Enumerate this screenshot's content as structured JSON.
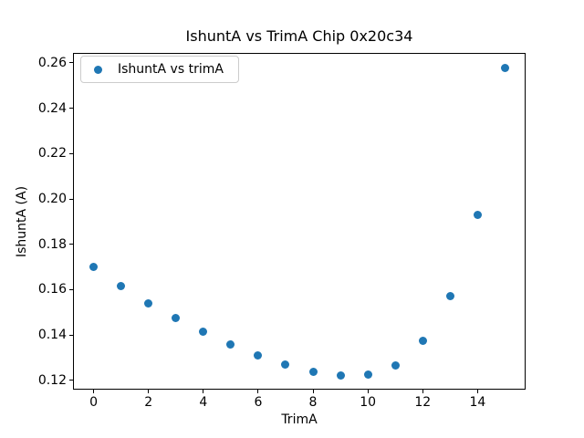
{
  "chart_data": {
    "type": "scatter",
    "title": "IshuntA vs TrimA Chip 0x20c34",
    "xlabel": "TrimA",
    "ylabel": "IshuntA (A)",
    "series": [
      {
        "name": "IshuntA vs trimA",
        "x": [
          0,
          1,
          2,
          3,
          4,
          5,
          6,
          7,
          8,
          9,
          10,
          11,
          12,
          13,
          14,
          15
        ],
        "y": [
          0.1701,
          0.1616,
          0.1539,
          0.1473,
          0.1414,
          0.1357,
          0.1308,
          0.1268,
          0.1236,
          0.1223,
          0.1226,
          0.1266,
          0.1375,
          0.1573,
          0.193,
          0.2576
        ]
      }
    ],
    "xlim": [
      -0.75,
      15.75
    ],
    "ylim": [
      0.1159,
      0.2644
    ],
    "xticks": [
      0,
      2,
      4,
      6,
      8,
      10,
      12,
      14
    ],
    "yticks": [
      0.12,
      0.14,
      0.16,
      0.18,
      0.2,
      0.22,
      0.24,
      0.26
    ],
    "grid": false,
    "legend_position": "upper left",
    "marker_color": "#1f77b4",
    "axis_color": "#000000",
    "background_color": "#ffffff"
  }
}
